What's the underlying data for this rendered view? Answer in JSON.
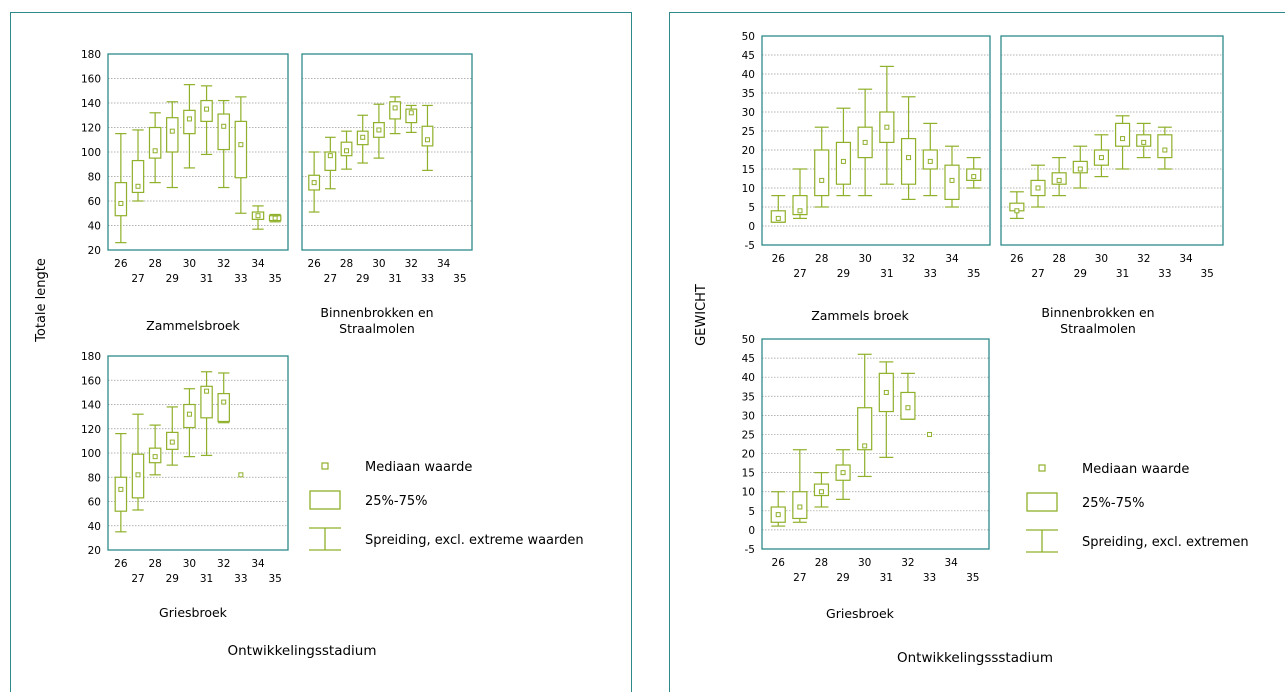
{
  "colors": {
    "box": "#8fb02a",
    "frame": "#2e8a8a",
    "grid": "#999999"
  },
  "legend_left": {
    "median": "Mediaan waarde",
    "box": "25%-75%",
    "whisker": "Spreiding, excl. extreme waarden"
  },
  "legend_right": {
    "median": "Mediaan waarde",
    "box": "25%-75%",
    "whisker": "Spreiding, excl. extremen"
  },
  "chart_data": [
    {
      "type": "box",
      "ylabel": "Totale lengte",
      "xlabel": "Ontwikkelingsstadium",
      "ylim": [
        20,
        180
      ],
      "yticks": [
        20,
        40,
        60,
        80,
        100,
        120,
        140,
        160,
        180
      ],
      "xticks": [
        26,
        27,
        28,
        29,
        30,
        31,
        32,
        33,
        34,
        35
      ],
      "panels": [
        {
          "title": "Zammelsbroek",
          "data": [
            {
              "stage": 26,
              "min": 26,
              "q1": 48,
              "median": 58,
              "q3": 75,
              "max": 115
            },
            {
              "stage": 27,
              "min": 60,
              "q1": 67,
              "median": 72,
              "q3": 93,
              "max": 118
            },
            {
              "stage": 28,
              "min": 75,
              "q1": 95,
              "median": 101,
              "q3": 120,
              "max": 132
            },
            {
              "stage": 29,
              "min": 71,
              "q1": 100,
              "median": 117,
              "q3": 128,
              "max": 141
            },
            {
              "stage": 30,
              "min": 87,
              "q1": 115,
              "median": 127,
              "q3": 134,
              "max": 155
            },
            {
              "stage": 31,
              "min": 98,
              "q1": 125,
              "median": 135,
              "q3": 142,
              "max": 154
            },
            {
              "stage": 32,
              "min": 71,
              "q1": 102,
              "median": 121,
              "q3": 131,
              "max": 142
            },
            {
              "stage": 33,
              "min": 50,
              "q1": 79,
              "median": 106,
              "q3": 125,
              "max": 145
            },
            {
              "stage": 34,
              "min": 37,
              "q1": 45,
              "median": 48,
              "q3": 51,
              "max": 56
            },
            {
              "stage": 35,
              "min": 43,
              "q1": 44,
              "median": 46,
              "q3": 48,
              "max": 49
            }
          ]
        },
        {
          "title": "Binnenbrokken en Straalmolen",
          "data": [
            {
              "stage": 26,
              "min": 51,
              "q1": 69,
              "median": 75,
              "q3": 81,
              "max": 100
            },
            {
              "stage": 27,
              "min": 70,
              "q1": 85,
              "median": 97,
              "q3": 100,
              "max": 112
            },
            {
              "stage": 28,
              "min": 86,
              "q1": 97,
              "median": 101,
              "q3": 108,
              "max": 117
            },
            {
              "stage": 29,
              "min": 91,
              "q1": 106,
              "median": 112,
              "q3": 117,
              "max": 130
            },
            {
              "stage": 30,
              "min": 95,
              "q1": 112,
              "median": 118,
              "q3": 124,
              "max": 139
            },
            {
              "stage": 31,
              "min": 115,
              "q1": 127,
              "median": 136,
              "q3": 141,
              "max": 145
            },
            {
              "stage": 32,
              "min": 116,
              "q1": 124,
              "median": 132,
              "q3": 135,
              "max": 138
            },
            {
              "stage": 33,
              "min": 85,
              "q1": 105,
              "median": 110,
              "q3": 121,
              "max": 138
            }
          ]
        },
        {
          "title": "Griesbroek",
          "data": [
            {
              "stage": 26,
              "min": 35,
              "q1": 52,
              "median": 70,
              "q3": 80,
              "max": 116
            },
            {
              "stage": 27,
              "min": 53,
              "q1": 63,
              "median": 82,
              "q3": 99,
              "max": 132
            },
            {
              "stage": 28,
              "min": 82,
              "q1": 92,
              "median": 97,
              "q3": 104,
              "max": 123
            },
            {
              "stage": 29,
              "min": 90,
              "q1": 103,
              "median": 109,
              "q3": 117,
              "max": 138
            },
            {
              "stage": 30,
              "min": 97,
              "q1": 121,
              "median": 132,
              "q3": 140,
              "max": 153
            },
            {
              "stage": 31,
              "min": 98,
              "q1": 129,
              "median": 151,
              "q3": 155,
              "max": 167
            },
            {
              "stage": 32,
              "min": 125,
              "q1": 126,
              "median": 142,
              "q3": 149,
              "max": 166
            },
            {
              "stage": 33,
              "min": 82,
              "q1": 82,
              "median": 82,
              "q3": 82,
              "max": 82
            }
          ]
        }
      ]
    },
    {
      "type": "box",
      "ylabel": "GEWICHT",
      "xlabel": "Ontwikkelingssstadium",
      "ylim": [
        -5,
        50
      ],
      "yticks": [
        -5,
        0,
        5,
        10,
        15,
        20,
        25,
        30,
        35,
        40,
        45,
        50
      ],
      "xticks": [
        26,
        27,
        28,
        29,
        30,
        31,
        32,
        33,
        34,
        35
      ],
      "panels": [
        {
          "title": "Zammels broek",
          "data": [
            {
              "stage": 26,
              "min": 1,
              "q1": 1,
              "median": 2,
              "q3": 4,
              "max": 8
            },
            {
              "stage": 27,
              "min": 2,
              "q1": 3,
              "median": 4,
              "q3": 8,
              "max": 15
            },
            {
              "stage": 28,
              "min": 5,
              "q1": 8,
              "median": 12,
              "q3": 20,
              "max": 26
            },
            {
              "stage": 29,
              "min": 8,
              "q1": 11,
              "median": 17,
              "q3": 22,
              "max": 31
            },
            {
              "stage": 30,
              "min": 8,
              "q1": 18,
              "median": 22,
              "q3": 26,
              "max": 36
            },
            {
              "stage": 31,
              "min": 11,
              "q1": 22,
              "median": 26,
              "q3": 30,
              "max": 42
            },
            {
              "stage": 32,
              "min": 7,
              "q1": 11,
              "median": 18,
              "q3": 23,
              "max": 34
            },
            {
              "stage": 33,
              "min": 8,
              "q1": 15,
              "median": 17,
              "q3": 20,
              "max": 27
            },
            {
              "stage": 34,
              "min": 5,
              "q1": 7,
              "median": 12,
              "q3": 16,
              "max": 21
            },
            {
              "stage": 35,
              "min": 10,
              "q1": 12,
              "median": 13,
              "q3": 15,
              "max": 18
            }
          ]
        },
        {
          "title": "Binnenbrokken en Straalmolen",
          "data": [
            {
              "stage": 26,
              "min": 2,
              "q1": 4,
              "median": 4,
              "q3": 6,
              "max": 9
            },
            {
              "stage": 27,
              "min": 5,
              "q1": 8,
              "median": 10,
              "q3": 12,
              "max": 16
            },
            {
              "stage": 28,
              "min": 8,
              "q1": 11,
              "median": 12,
              "q3": 14,
              "max": 18
            },
            {
              "stage": 29,
              "min": 10,
              "q1": 14,
              "median": 15,
              "q3": 17,
              "max": 21
            },
            {
              "stage": 30,
              "min": 13,
              "q1": 16,
              "median": 18,
              "q3": 20,
              "max": 24
            },
            {
              "stage": 31,
              "min": 15,
              "q1": 21,
              "median": 23,
              "q3": 27,
              "max": 29
            },
            {
              "stage": 32,
              "min": 18,
              "q1": 21,
              "median": 22,
              "q3": 24,
              "max": 27
            },
            {
              "stage": 33,
              "min": 15,
              "q1": 18,
              "median": 20,
              "q3": 24,
              "max": 26
            }
          ]
        },
        {
          "title": "Griesbroek",
          "data": [
            {
              "stage": 26,
              "min": 1,
              "q1": 2,
              "median": 4,
              "q3": 6,
              "max": 10
            },
            {
              "stage": 27,
              "min": 2,
              "q1": 3,
              "median": 6,
              "q3": 10,
              "max": 21
            },
            {
              "stage": 28,
              "min": 6,
              "q1": 9,
              "median": 10,
              "q3": 12,
              "max": 15
            },
            {
              "stage": 29,
              "min": 8,
              "q1": 13,
              "median": 15,
              "q3": 17,
              "max": 21
            },
            {
              "stage": 30,
              "min": 14,
              "q1": 21,
              "median": 22,
              "q3": 32,
              "max": 46
            },
            {
              "stage": 31,
              "min": 19,
              "q1": 31,
              "median": 36,
              "q3": 41,
              "max": 44
            },
            {
              "stage": 32,
              "min": 29,
              "q1": 29,
              "median": 32,
              "q3": 36,
              "max": 41
            },
            {
              "stage": 33,
              "min": 25,
              "q1": 25,
              "median": 25,
              "q3": 25,
              "max": 25
            }
          ]
        }
      ]
    }
  ]
}
